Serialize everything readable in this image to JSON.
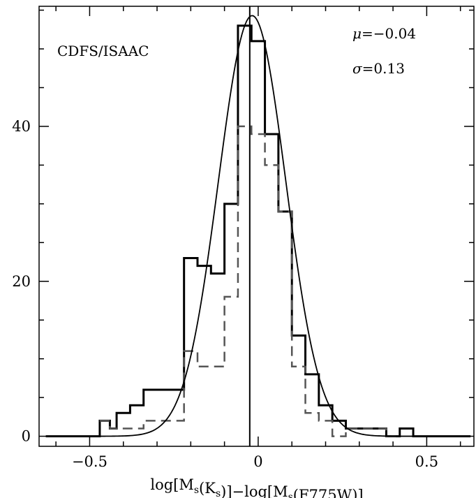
{
  "chart_data": {
    "type": "histogram",
    "xlabel": {
      "parts": [
        {
          "t": "log[M",
          "sub": false
        },
        {
          "t": "s",
          "sub": true
        },
        {
          "t": "(K",
          "sub": false
        },
        {
          "t": "s",
          "sub": true
        },
        {
          "t": ")]−log[M",
          "sub": false
        },
        {
          "t": "s",
          "sub": true
        },
        {
          "t": "(F775W)]",
          "sub": false
        }
      ]
    },
    "ylabel": "",
    "xlim": [
      -0.65,
      0.64
    ],
    "ylim": [
      -1.3,
      55.5
    ],
    "x_ticks": [
      {
        "value": -0.5,
        "label": "−0.5"
      },
      {
        "value": 0,
        "label": "0"
      },
      {
        "value": 0.5,
        "label": "0.5"
      }
    ],
    "x_minor_step": 0.1,
    "y_ticks": [
      {
        "value": 0,
        "label": "0"
      },
      {
        "value": 20,
        "label": "20"
      },
      {
        "value": 40,
        "label": "40"
      }
    ],
    "y_minor_step": 5,
    "annotations": {
      "sample": "CDFS/ISAAC",
      "mu_symbol": "μ",
      "mu_value": "=−0.04",
      "sigma_symbol": "σ",
      "sigma_value": "=0.13"
    },
    "vertical_line_x": -0.025,
    "series": [
      {
        "style": "solid",
        "color": "#000000",
        "bins": [
          {
            "x0": -0.63,
            "x1": -0.47,
            "y": 0
          },
          {
            "x0": -0.47,
            "x1": -0.44,
            "y": 2
          },
          {
            "x0": -0.44,
            "x1": -0.42,
            "y": 1
          },
          {
            "x0": -0.42,
            "x1": -0.38,
            "y": 3
          },
          {
            "x0": -0.38,
            "x1": -0.34,
            "y": 4
          },
          {
            "x0": -0.34,
            "x1": -0.3,
            "y": 6
          },
          {
            "x0": -0.3,
            "x1": -0.22,
            "y": 6
          },
          {
            "x0": -0.22,
            "x1": -0.18,
            "y": 23
          },
          {
            "x0": -0.18,
            "x1": -0.14,
            "y": 22
          },
          {
            "x0": -0.14,
            "x1": -0.1,
            "y": 21
          },
          {
            "x0": -0.1,
            "x1": -0.06,
            "y": 30
          },
          {
            "x0": -0.06,
            "x1": -0.02,
            "y": 53
          },
          {
            "x0": -0.02,
            "x1": 0.02,
            "y": 51
          },
          {
            "x0": 0.02,
            "x1": 0.06,
            "y": 39
          },
          {
            "x0": 0.06,
            "x1": 0.1,
            "y": 29
          },
          {
            "x0": 0.1,
            "x1": 0.14,
            "y": 13
          },
          {
            "x0": 0.14,
            "x1": 0.18,
            "y": 8
          },
          {
            "x0": 0.18,
            "x1": 0.22,
            "y": 4
          },
          {
            "x0": 0.22,
            "x1": 0.26,
            "y": 2
          },
          {
            "x0": 0.26,
            "x1": 0.3,
            "y": 1
          },
          {
            "x0": 0.3,
            "x1": 0.38,
            "y": 1
          },
          {
            "x0": 0.38,
            "x1": 0.42,
            "y": 0
          },
          {
            "x0": 0.42,
            "x1": 0.46,
            "y": 1
          },
          {
            "x0": 0.46,
            "x1": 0.63,
            "y": 0
          }
        ]
      },
      {
        "style": "dashed",
        "color": "#555555",
        "bins": [
          {
            "x0": -0.47,
            "x1": -0.44,
            "y": 2
          },
          {
            "x0": -0.44,
            "x1": -0.34,
            "y": 1
          },
          {
            "x0": -0.34,
            "x1": -0.26,
            "y": 2
          },
          {
            "x0": -0.26,
            "x1": -0.22,
            "y": 2
          },
          {
            "x0": -0.22,
            "x1": -0.18,
            "y": 11
          },
          {
            "x0": -0.18,
            "x1": -0.1,
            "y": 9
          },
          {
            "x0": -0.1,
            "x1": -0.06,
            "y": 18
          },
          {
            "x0": -0.06,
            "x1": -0.02,
            "y": 40
          },
          {
            "x0": -0.02,
            "x1": 0.02,
            "y": 39
          },
          {
            "x0": 0.02,
            "x1": 0.06,
            "y": 35
          },
          {
            "x0": 0.06,
            "x1": 0.1,
            "y": 29
          },
          {
            "x0": 0.1,
            "x1": 0.14,
            "y": 9
          },
          {
            "x0": 0.14,
            "x1": 0.18,
            "y": 3
          },
          {
            "x0": 0.18,
            "x1": 0.22,
            "y": 2
          },
          {
            "x0": 0.22,
            "x1": 0.26,
            "y": 0
          },
          {
            "x0": 0.26,
            "x1": 0.3,
            "y": 1
          },
          {
            "x0": 0.3,
            "x1": 0.38,
            "y": 1
          },
          {
            "x0": 0.38,
            "x1": 0.42,
            "y": 0
          }
        ]
      }
    ],
    "gaussian_fit": {
      "mu": -0.018,
      "sigma": 0.1,
      "amplitude": 54.3,
      "x_range": [
        -0.63,
        0.63
      ]
    }
  }
}
